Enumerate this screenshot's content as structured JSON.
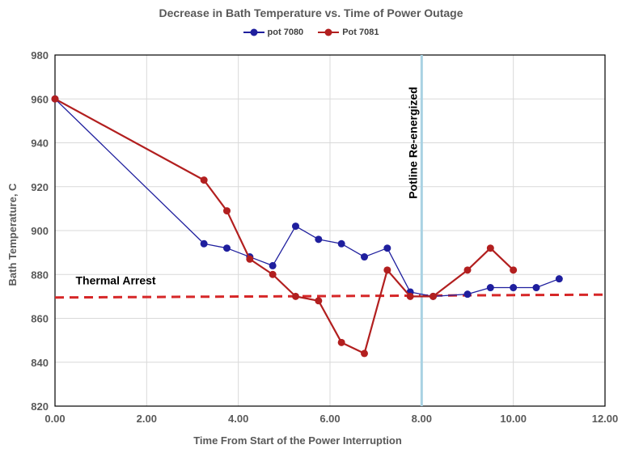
{
  "chart_data": {
    "type": "line",
    "title": "Decrease in Bath Temperature vs. Time of Power Outage",
    "xlabel": "Time From Start of the Power Interruption",
    "ylabel": "Bath Temperature, C",
    "xlim": [
      0,
      12
    ],
    "ylim": [
      820,
      980
    ],
    "x_ticks": [
      "0.00",
      "2.00",
      "4.00",
      "6.00",
      "8.00",
      "10.00",
      "12.00"
    ],
    "y_ticks": [
      "820",
      "840",
      "860",
      "880",
      "900",
      "920",
      "940",
      "960",
      "980"
    ],
    "grid": true,
    "legend_position": "top",
    "series": [
      {
        "name": "pot 7080",
        "color": "#1f1f9e",
        "points": [
          [
            0,
            960
          ],
          [
            3.25,
            894
          ],
          [
            3.75,
            892
          ],
          [
            4.25,
            888
          ],
          [
            4.75,
            884
          ],
          [
            5.25,
            902
          ],
          [
            5.75,
            896
          ],
          [
            6.25,
            894
          ],
          [
            6.75,
            888
          ],
          [
            7.25,
            892
          ],
          [
            7.75,
            872
          ],
          [
            8.25,
            870
          ],
          [
            9.0,
            871
          ],
          [
            9.5,
            874
          ],
          [
            10.0,
            874
          ],
          [
            10.5,
            874
          ],
          [
            11.0,
            878
          ]
        ]
      },
      {
        "name": "Pot 7081",
        "color": "#b21f1f",
        "points": [
          [
            0,
            960
          ],
          [
            3.25,
            923
          ],
          [
            3.75,
            909
          ],
          [
            4.25,
            887
          ],
          [
            4.75,
            880
          ],
          [
            5.25,
            870
          ],
          [
            5.75,
            868
          ],
          [
            6.25,
            849
          ],
          [
            6.75,
            844
          ],
          [
            7.25,
            882
          ],
          [
            7.75,
            870
          ],
          [
            8.25,
            870
          ],
          [
            9.0,
            882
          ],
          [
            9.5,
            892
          ],
          [
            10.0,
            882
          ]
        ]
      }
    ],
    "reference_lines": [
      {
        "label": "Thermal Arrest",
        "orientation": "horizontal",
        "y_start": 869.5,
        "y_end": 870.8,
        "color": "#d62728",
        "style": "dashed"
      },
      {
        "label": "Potline Re-energized",
        "orientation": "vertical",
        "x": 8.0,
        "color": "#a9d2e3"
      }
    ]
  }
}
